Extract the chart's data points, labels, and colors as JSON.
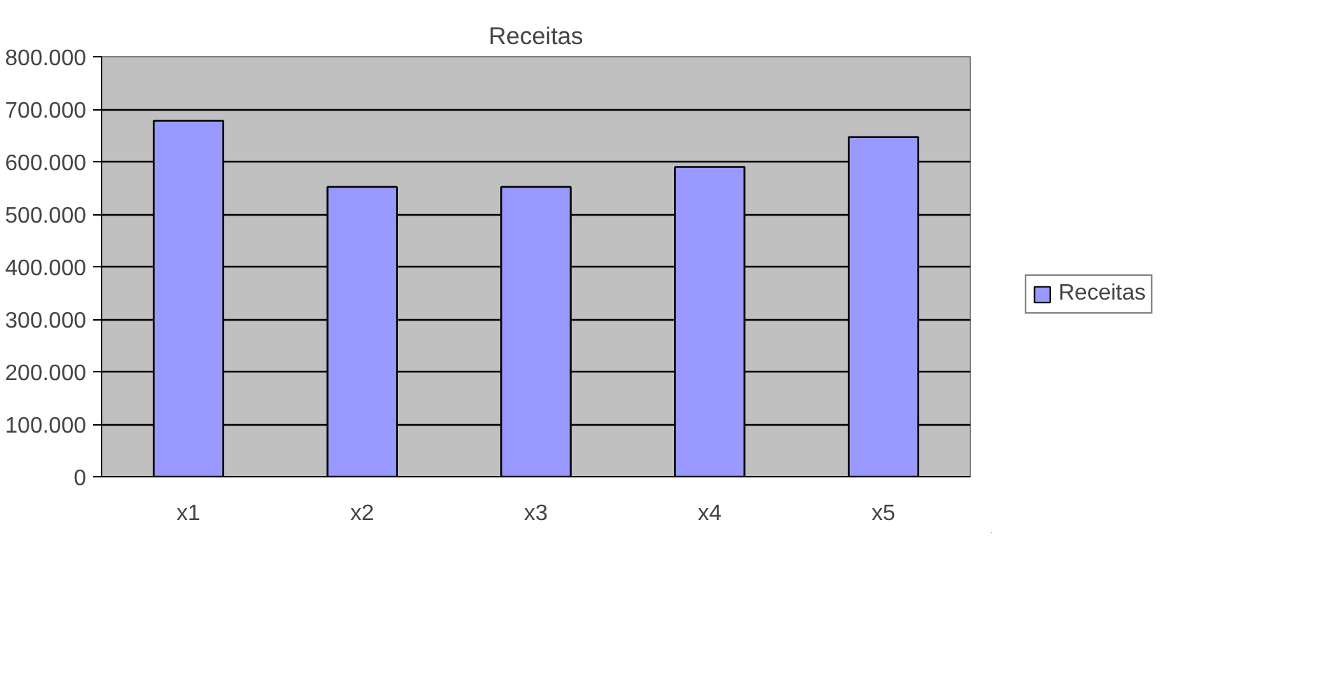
{
  "chart_data": {
    "type": "bar",
    "title": "Receitas",
    "categories": [
      "x1",
      "x2",
      "x3",
      "x4",
      "x5"
    ],
    "series": [
      {
        "name": "Receitas",
        "color": "#9999ff",
        "values": [
          678000,
          552000,
          552000,
          590000,
          647000
        ]
      }
    ],
    "ylim": [
      0,
      800000
    ],
    "yticks": [
      0,
      {
        "value": 100000,
        "label": "100.000"
      },
      {
        "value": 200000,
        "label": "200.000"
      },
      {
        "value": 300000,
        "label": "300.000"
      },
      {
        "value": 400000,
        "label": "400.000"
      },
      {
        "value": 500000,
        "label": "500.000"
      },
      {
        "value": 600000,
        "label": "600.000"
      },
      {
        "value": 700000,
        "label": "700.000"
      },
      {
        "value": 800000,
        "label": "800.000"
      }
    ],
    "grid": "y",
    "legend": "right"
  }
}
